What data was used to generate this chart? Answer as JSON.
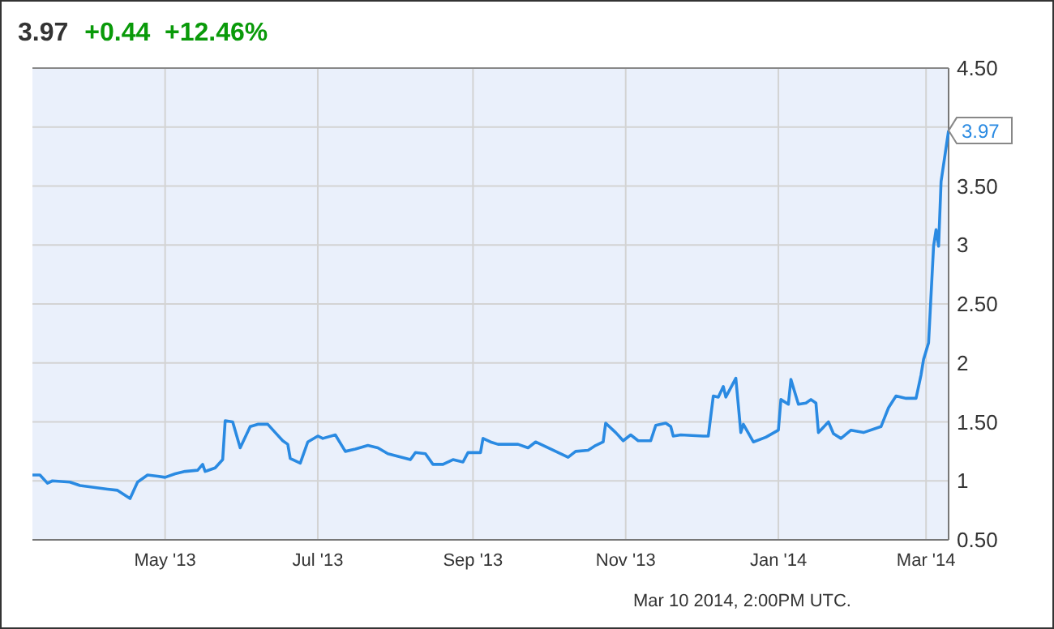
{
  "chart_data": {
    "type": "line",
    "title": "3.97",
    "subtitle": "+0.44  +12.46%",
    "annotations": [
      {
        "text": "3.97",
        "x": "2014-03-10",
        "y": 3.97
      },
      "Mar 10 2014, 2:00PM UTC."
    ],
    "xlim": [
      "2013-03-09",
      "2014-03-10"
    ],
    "xticks": [
      {
        "value": "2013-05-01",
        "label": "May '13"
      },
      {
        "value": "2013-07-01",
        "label": "Jul '13"
      },
      {
        "value": "2013-09-01",
        "label": "Sep '13"
      },
      {
        "value": "2013-11-01",
        "label": "Nov '13"
      },
      {
        "value": "2014-01-01",
        "label": "Jan '14"
      },
      {
        "value": "2014-03-01",
        "label": "Mar '14"
      }
    ],
    "ylim": [
      0.5,
      4.5
    ],
    "yticks": [
      {
        "value": 0.5,
        "label": "0.50"
      },
      1,
      {
        "value": 1.5,
        "label": "1.50"
      },
      2,
      {
        "value": 2.5,
        "label": "2.50"
      },
      3,
      {
        "value": 3.5,
        "label": "3.50"
      },
      {
        "value": 4,
        "label": null
      },
      {
        "value": 4.5,
        "label": "4.50"
      }
    ],
    "grid": true,
    "marker": "none",
    "line_style": "solid",
    "series": [
      {
        "color": "#2a8ae2",
        "x": [
          "2013-03-09",
          "2013-03-12",
          "2013-03-15",
          "2013-03-17",
          "2013-03-24",
          "2013-03-28",
          "2013-04-08",
          "2013-04-12",
          "2013-04-17",
          "2013-04-20",
          "2013-04-24",
          "2013-04-28",
          "2013-05-01",
          "2013-05-05",
          "2013-05-09",
          "2013-05-14",
          "2013-05-16",
          "2013-05-17",
          "2013-05-21",
          "2013-05-24",
          "2013-05-25",
          "2013-05-28",
          "2013-05-31",
          "2013-06-04",
          "2013-06-07",
          "2013-06-11",
          "2013-06-14",
          "2013-06-17",
          "2013-06-19",
          "2013-06-20",
          "2013-06-24",
          "2013-06-27",
          "2013-07-01",
          "2013-07-03",
          "2013-07-08",
          "2013-07-12",
          "2013-07-16",
          "2013-07-21",
          "2013-07-25",
          "2013-07-29",
          "2013-08-07",
          "2013-08-09",
          "2013-08-13",
          "2013-08-16",
          "2013-08-20",
          "2013-08-24",
          "2013-08-28",
          "2013-08-30",
          "2013-09-04",
          "2013-09-05",
          "2013-09-08",
          "2013-09-11",
          "2013-09-19",
          "2013-09-23",
          "2013-09-26",
          "2013-10-02",
          "2013-10-09",
          "2013-10-12",
          "2013-10-17",
          "2013-10-20",
          "2013-10-23",
          "2013-10-24",
          "2013-10-28",
          "2013-10-31",
          "2013-11-03",
          "2013-11-06",
          "2013-11-11",
          "2013-11-13",
          "2013-11-17",
          "2013-11-19",
          "2013-11-20",
          "2013-11-23",
          "2013-12-02",
          "2013-12-04",
          "2013-12-06",
          "2013-12-08",
          "2013-12-10",
          "2013-12-11",
          "2013-12-15",
          "2013-12-17",
          "2013-12-18",
          "2013-12-22",
          "2013-12-27",
          "2014-01-01",
          "2014-01-02",
          "2014-01-05",
          "2014-01-06",
          "2014-01-09",
          "2014-01-12",
          "2014-01-14",
          "2014-01-16",
          "2014-01-17",
          "2014-01-21",
          "2014-01-23",
          "2014-01-26",
          "2014-01-30",
          "2014-02-04",
          "2014-02-11",
          "2014-02-14",
          "2014-02-17",
          "2014-02-21",
          "2014-02-25",
          "2014-02-27",
          "2014-02-28",
          "2014-03-02",
          "2014-03-04",
          "2014-03-05",
          "2014-03-06",
          "2014-03-07",
          "2014-03-10"
        ],
        "values": [
          1.05,
          1.05,
          0.98,
          1.0,
          0.99,
          0.96,
          0.93,
          0.92,
          0.85,
          0.99,
          1.05,
          1.04,
          1.03,
          1.06,
          1.08,
          1.09,
          1.14,
          1.08,
          1.11,
          1.18,
          1.51,
          1.5,
          1.28,
          1.46,
          1.48,
          1.48,
          1.41,
          1.34,
          1.31,
          1.19,
          1.15,
          1.33,
          1.38,
          1.36,
          1.39,
          1.25,
          1.27,
          1.3,
          1.28,
          1.23,
          1.18,
          1.24,
          1.23,
          1.14,
          1.14,
          1.18,
          1.16,
          1.24,
          1.24,
          1.36,
          1.33,
          1.31,
          1.31,
          1.28,
          1.33,
          1.27,
          1.2,
          1.25,
          1.26,
          1.3,
          1.33,
          1.49,
          1.41,
          1.34,
          1.39,
          1.34,
          1.34,
          1.47,
          1.49,
          1.46,
          1.38,
          1.39,
          1.38,
          1.38,
          1.72,
          1.71,
          1.8,
          1.71,
          1.87,
          1.41,
          1.48,
          1.33,
          1.37,
          1.43,
          1.69,
          1.65,
          1.86,
          1.65,
          1.66,
          1.69,
          1.66,
          1.41,
          1.5,
          1.4,
          1.36,
          1.43,
          1.41,
          1.46,
          1.62,
          1.72,
          1.7,
          1.7,
          1.9,
          2.03,
          2.17,
          2.99,
          3.13,
          2.99,
          3.54,
          3.97
        ]
      }
    ]
  }
}
